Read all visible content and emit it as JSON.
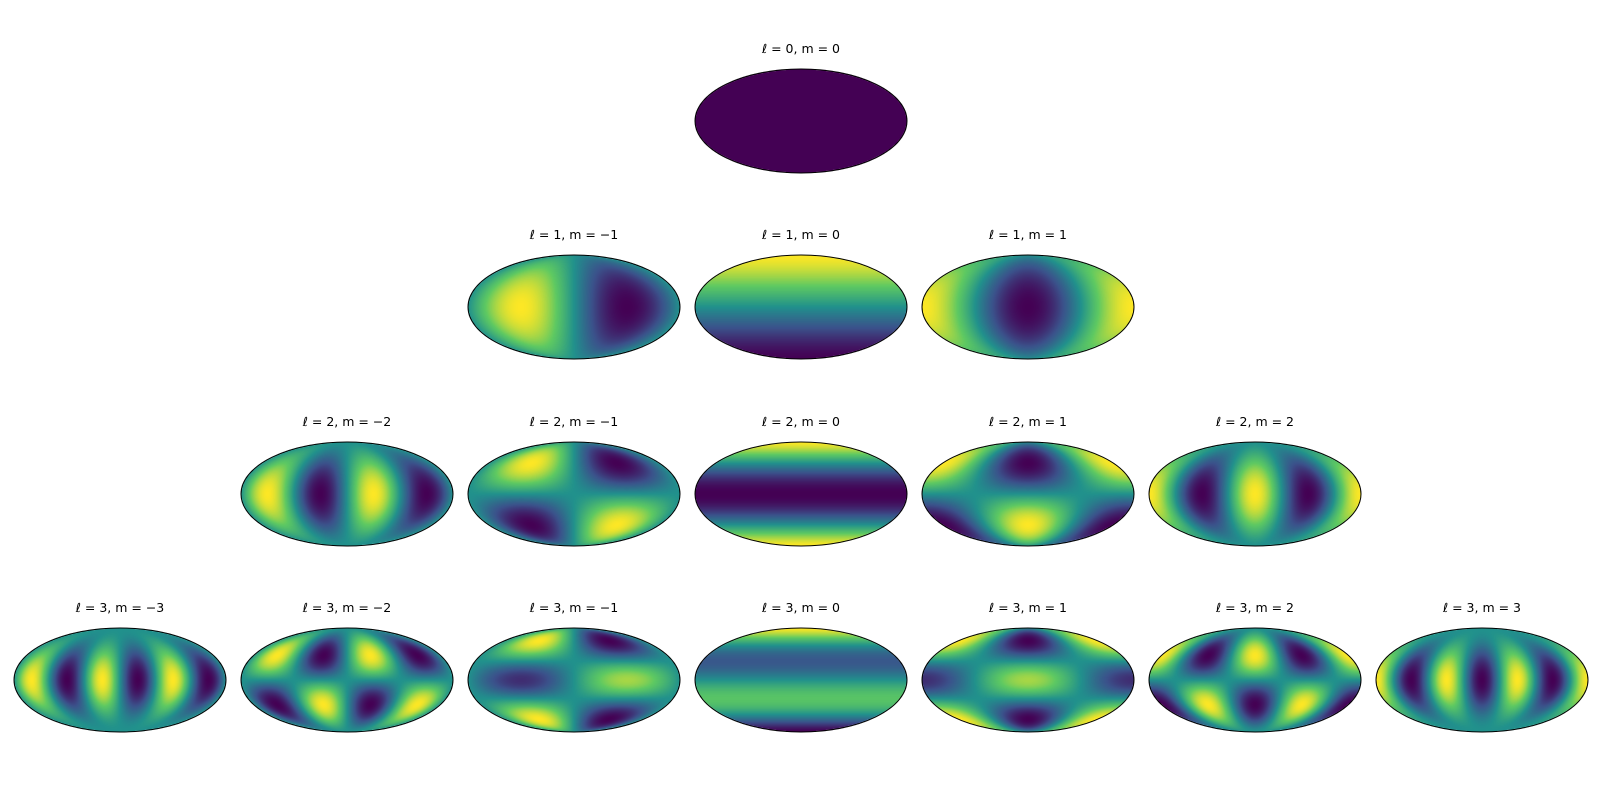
{
  "colormap": {
    "name": "viridis",
    "stops": [
      "#440154",
      "#3b528b",
      "#21918c",
      "#5ec962",
      "#fde725"
    ]
  },
  "rows": [
    {
      "l": 0,
      "panels": [
        {
          "m": 0,
          "title": "ℓ = 0,  m = 0"
        }
      ]
    },
    {
      "l": 1,
      "panels": [
        {
          "m": -1,
          "title": "ℓ = 1,  m = −1"
        },
        {
          "m": 0,
          "title": "ℓ = 1,  m = 0"
        },
        {
          "m": 1,
          "title": "ℓ = 1,  m = 1"
        }
      ]
    },
    {
      "l": 2,
      "panels": [
        {
          "m": -2,
          "title": "ℓ = 2,  m = −2"
        },
        {
          "m": -1,
          "title": "ℓ = 2,  m = −1"
        },
        {
          "m": 0,
          "title": "ℓ = 2,  m = 0"
        },
        {
          "m": 1,
          "title": "ℓ = 2,  m = 1"
        },
        {
          "m": 2,
          "title": "ℓ = 2,  m = 2"
        }
      ]
    },
    {
      "l": 3,
      "panels": [
        {
          "m": -3,
          "title": "ℓ = 3,  m = −3"
        },
        {
          "m": -2,
          "title": "ℓ = 3,  m = −2"
        },
        {
          "m": -1,
          "title": "ℓ = 3,  m = −1"
        },
        {
          "m": 0,
          "title": "ℓ = 3,  m = 0"
        },
        {
          "m": 1,
          "title": "ℓ = 3,  m = 1"
        },
        {
          "m": 2,
          "title": "ℓ = 3,  m = 2"
        },
        {
          "m": 3,
          "title": "ℓ = 3,  m = 3"
        }
      ]
    }
  ]
}
